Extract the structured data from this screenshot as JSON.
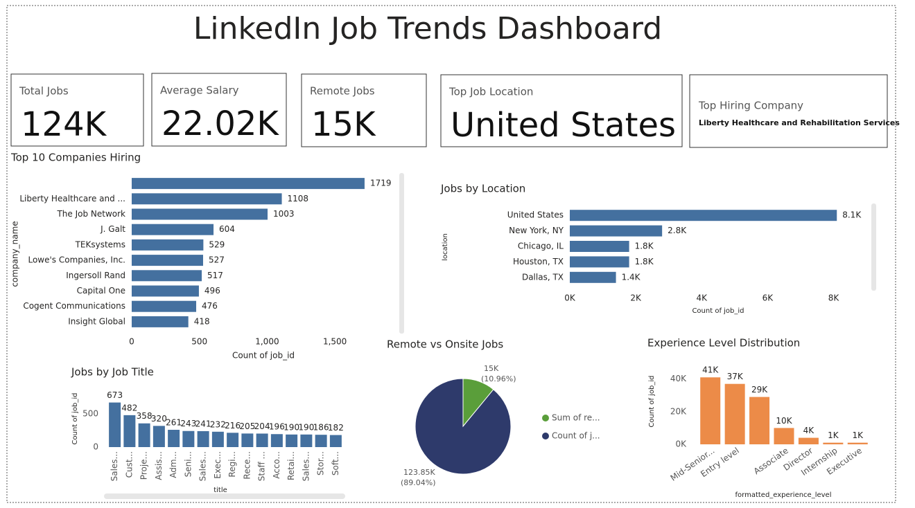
{
  "title": "LinkedIn Job Trends Dashboard",
  "cards": [
    {
      "label": "Total Jobs",
      "value": "124K"
    },
    {
      "label": "Average Salary",
      "value": "22.02K"
    },
    {
      "label": "Remote Jobs",
      "value": "15K"
    },
    {
      "label": "Top Job Location",
      "value": "United States"
    },
    {
      "label": "Top Hiring Company",
      "value": "Liberty Healthcare and Rehabilitation Services"
    }
  ],
  "chart_data": [
    {
      "type": "hbar",
      "title": "Top 10 Companies Hiring",
      "categories": [
        null,
        "Liberty Healthcare and ...",
        "The Job Network",
        "J. Galt",
        "TEKsystems",
        "Lowe's Companies, Inc.",
        "Ingersoll Rand",
        "Capital One",
        "Cogent Communications",
        "Insight Global"
      ],
      "values": [
        1719,
        1108,
        1003,
        604,
        529,
        527,
        517,
        496,
        476,
        418
      ],
      "color": "#44709f",
      "xlim": [
        0,
        1750
      ],
      "xticks": [
        0,
        500,
        {
          "value": 1000,
          "label": "1,000"
        },
        {
          "value": 1500,
          "label": "1,500"
        }
      ],
      "xlabel": "Count of job_id",
      "ylabel": "company_name"
    },
    {
      "type": "hbar",
      "title": "Jobs by Location",
      "categories": [
        "United States",
        "New York, NY",
        "Chicago, IL",
        "Houston, TX",
        "Dallas, TX"
      ],
      "values": [
        8100,
        2800,
        1800,
        1800,
        1400
      ],
      "value_labels": [
        "8.1K",
        "2.8K",
        "1.8K",
        "1.8K",
        "1.4K"
      ],
      "color": "#44709f",
      "xlim": [
        0,
        8200
      ],
      "xticks": [
        {
          "value": 0,
          "label": "0K"
        },
        {
          "value": 2000,
          "label": "2K"
        },
        {
          "value": 4000,
          "label": "4K"
        },
        {
          "value": 6000,
          "label": "6K"
        },
        {
          "value": 8000,
          "label": "8K"
        }
      ],
      "xlabel": "Count of job_id",
      "ylabel": "location"
    },
    {
      "type": "bar",
      "title": "Jobs by Job Title",
      "categories": [
        "Sales...",
        "Cust...",
        "Proje...",
        "Assis...",
        "Adm...",
        "Seni...",
        "Sales...",
        "Exec...",
        "Regi...",
        "Rece...",
        "Staff ...",
        "Acco...",
        "Retai...",
        "Sales...",
        "Stor...",
        "Soft..."
      ],
      "values": [
        673,
        482,
        358,
        320,
        261,
        243,
        241,
        232,
        216,
        205,
        204,
        196,
        190,
        190,
        186,
        182
      ],
      "color": "#44709f",
      "ylim": [
        0,
        700
      ],
      "yticks": [
        0,
        500
      ],
      "xlabel": "title",
      "ylabel": "Count of job_id",
      "label_rotation": -90
    },
    {
      "type": "pie",
      "title": "Remote vs Onsite Jobs",
      "labels": [
        "Sum of re...",
        "Count of j..."
      ],
      "values": [
        15246,
        123850
      ],
      "value_labels": [
        "15K",
        "123.85K"
      ],
      "percent_labels": [
        "(10.96%)",
        "(89.04%)"
      ],
      "colors": [
        "#5a9e3a",
        "#2e3a6b"
      ]
    },
    {
      "type": "bar",
      "title": "Experience Level Distribution",
      "categories": [
        "Mid-Senior...",
        "Entry level",
        null,
        "Associate",
        "Director",
        "Internship",
        "Executive"
      ],
      "values": [
        41000,
        37000,
        29000,
        10000,
        4000,
        1000,
        1000
      ],
      "value_labels": [
        "41K",
        "37K",
        "29K",
        "10K",
        "4K",
        "1K",
        "1K"
      ],
      "color": "#ec8b48",
      "ylim": [
        0,
        50000
      ],
      "yticks": [
        {
          "value": 0,
          "label": "0K"
        },
        {
          "value": 20000,
          "label": "20K"
        },
        {
          "value": 40000,
          "label": "40K"
        }
      ],
      "xlabel": "formatted_experience_level",
      "ylabel": "Count of job_id",
      "label_rotation": -35
    }
  ]
}
